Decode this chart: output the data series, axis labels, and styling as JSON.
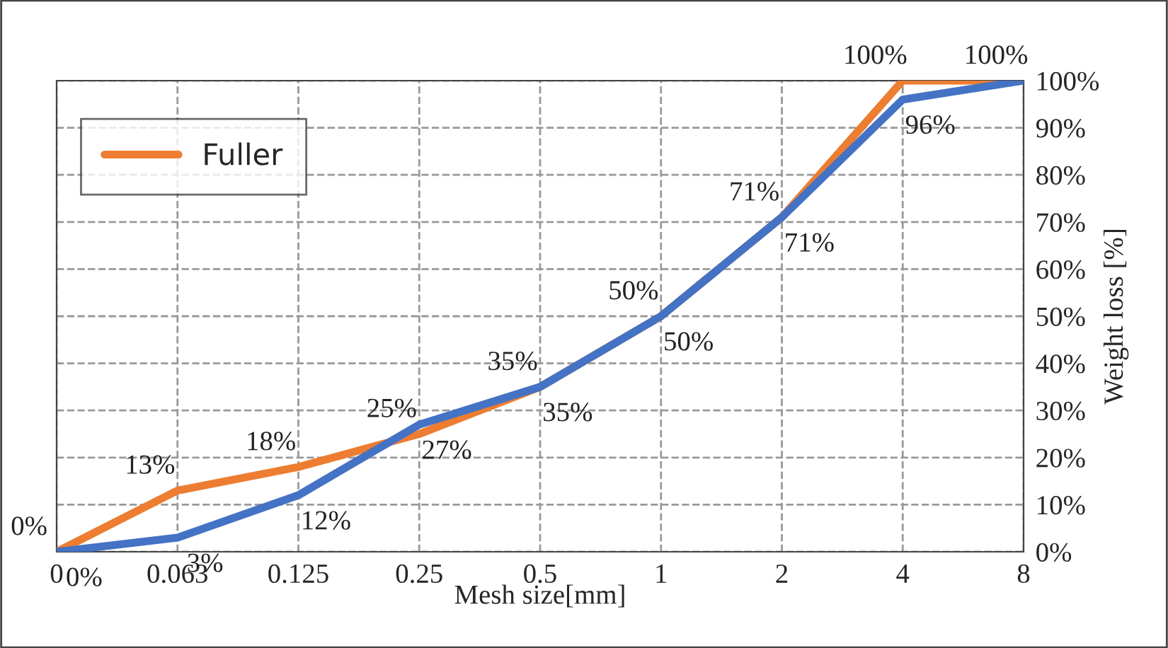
{
  "chart_data": {
    "type": "line",
    "xlabel": "Mesh size[mm]",
    "ylabel": "Weight loss [%]",
    "categories": [
      "0",
      "0.063",
      "0.125",
      "0.25",
      "0.5",
      "1",
      "2",
      "4",
      "8"
    ],
    "series": [
      {
        "name": "Fuller",
        "color": "#ed7d31",
        "values": [
          0,
          13,
          18,
          25,
          35,
          50,
          71,
          100,
          100
        ],
        "value_labels": [
          "0%",
          "13%",
          "18%",
          "25%",
          "35%",
          "50%",
          "71%",
          "100%",
          "100%"
        ]
      },
      {
        "color": "#4472c4",
        "values": [
          0,
          3,
          12,
          27,
          35,
          50,
          71,
          96,
          100
        ],
        "value_labels": [
          "0%",
          "3%",
          "12%",
          "27%",
          "35%",
          "50%",
          "71%",
          "96%",
          null
        ]
      }
    ],
    "ylim": [
      0,
      100
    ],
    "yticks": [
      {
        "value": 0,
        "label": "0%"
      },
      {
        "value": 10,
        "label": "10%"
      },
      {
        "value": 20,
        "label": "20%"
      },
      {
        "value": 30,
        "label": "30%"
      },
      {
        "value": 40,
        "label": "40%"
      },
      {
        "value": 50,
        "label": "50%"
      },
      {
        "value": 60,
        "label": "60%"
      },
      {
        "value": 70,
        "label": "70%"
      },
      {
        "value": 80,
        "label": "80%"
      },
      {
        "value": 90,
        "label": "90%"
      },
      {
        "value": 100,
        "label": "100%"
      }
    ],
    "grid": true,
    "legend": "top left",
    "marker": "none",
    "line_style": "solid"
  }
}
